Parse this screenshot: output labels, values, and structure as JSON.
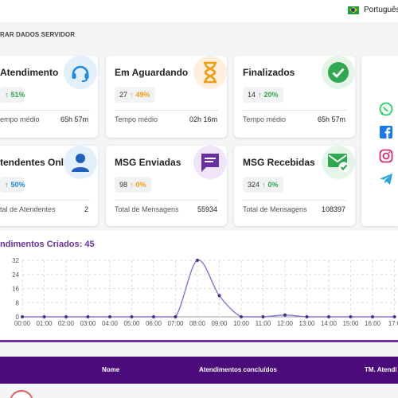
{
  "topbar": {
    "language": "Português"
  },
  "subheader": {
    "label": "RAR DADOS SERVIDOR"
  },
  "cards": [
    {
      "title": "Atendimento",
      "count": "",
      "pct": "51%",
      "trend": "up",
      "metric_label": "empo médio",
      "metric_value": "65h 57m",
      "icon": "headset-icon"
    },
    {
      "title": "Em Aguardando",
      "count": "27",
      "pct": "49%",
      "trend": "up",
      "metric_label": "Tempo médio",
      "metric_value": "02h 16m",
      "icon": "hourglass-icon"
    },
    {
      "title": "Finalizados",
      "count": "14",
      "pct": "20%",
      "trend": "up",
      "metric_label": "Tempo médio",
      "metric_value": "65h 57m",
      "icon": "check-circle-icon"
    },
    {
      "title": "tendentes Online",
      "count": "",
      "pct": "50%",
      "trend": "up",
      "metric_label": "tal de Atendentes",
      "metric_value": "2",
      "icon": "person-icon"
    },
    {
      "title": "MSG Enviadas",
      "count": "98",
      "pct": "0%",
      "trend": "up",
      "metric_label": "Total de Mensagens",
      "metric_value": "55934",
      "icon": "message-icon"
    },
    {
      "title": "MSG Recebidas",
      "count": "324",
      "pct": "0%",
      "trend": "up",
      "metric_label": "Total de Mensagens",
      "metric_value": "108397",
      "icon": "mail-check-icon"
    }
  ],
  "social": [
    "whatsapp-icon",
    "facebook-icon",
    "instagram-icon",
    "telegram-icon"
  ],
  "chart": {
    "title": "ndimentos Criados: 45"
  },
  "chart_data": {
    "type": "line",
    "title": "ndimentos Criados: 45",
    "x": [
      "00:00",
      "01:00",
      "02:00",
      "03:00",
      "04:00",
      "05:00",
      "06:00",
      "07:00",
      "08:00",
      "09:00",
      "10:00",
      "11:00",
      "12:00",
      "13:00",
      "14:00",
      "15:00",
      "16:00",
      "17:0"
    ],
    "series": [
      {
        "values": [
          0,
          0,
          0,
          0,
          0,
          0,
          0,
          0,
          32,
          12,
          0,
          0,
          1,
          0,
          0,
          0,
          0,
          0
        ]
      }
    ],
    "yticks": [
      0,
      8,
      16,
      24,
      32
    ],
    "ylim": [
      0,
      32
    ],
    "grid": true,
    "colors": {
      "line": "#8a72d6",
      "point": "#3a3a8c"
    }
  },
  "table": {
    "columns": [
      "Nome",
      "Atendimentos concluídos",
      "TM. Atendi"
    ]
  },
  "colors": {
    "accent": "#6a2fa0",
    "table_header": "#4a0a7a",
    "green": "#2fa84f",
    "orange": "#f29d12",
    "blue": "#1e88e5"
  }
}
